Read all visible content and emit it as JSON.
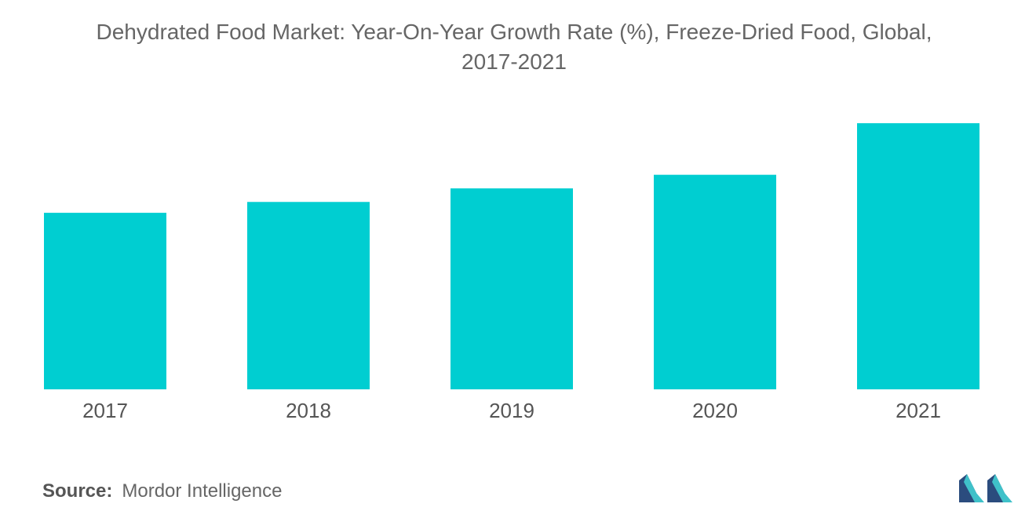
{
  "title_line1": "Dehydrated Food Market: Year-On-Year Growth Rate (%), Freeze-Dried Food, Global,",
  "title_line2": "2017-2021",
  "source": {
    "label": "Source:",
    "value": "Mordor Intelligence"
  },
  "colors": {
    "bar": "#00CED1",
    "text": "#666666",
    "logo_dark": "#2B4C7E",
    "logo_light": "#3FC1C9"
  },
  "chart_data": {
    "type": "bar",
    "title": "Dehydrated Food Market: Year-On-Year Growth Rate (%), Freeze-Dried Food, Global, 2017-2021",
    "categories": [
      "2017",
      "2018",
      "2019",
      "2020",
      "2021"
    ],
    "values": [
      6.5,
      6.9,
      7.4,
      7.9,
      9.8
    ],
    "ylim": [
      0,
      10
    ],
    "xlabel": "",
    "ylabel": "",
    "grid": false,
    "legend": "none"
  }
}
